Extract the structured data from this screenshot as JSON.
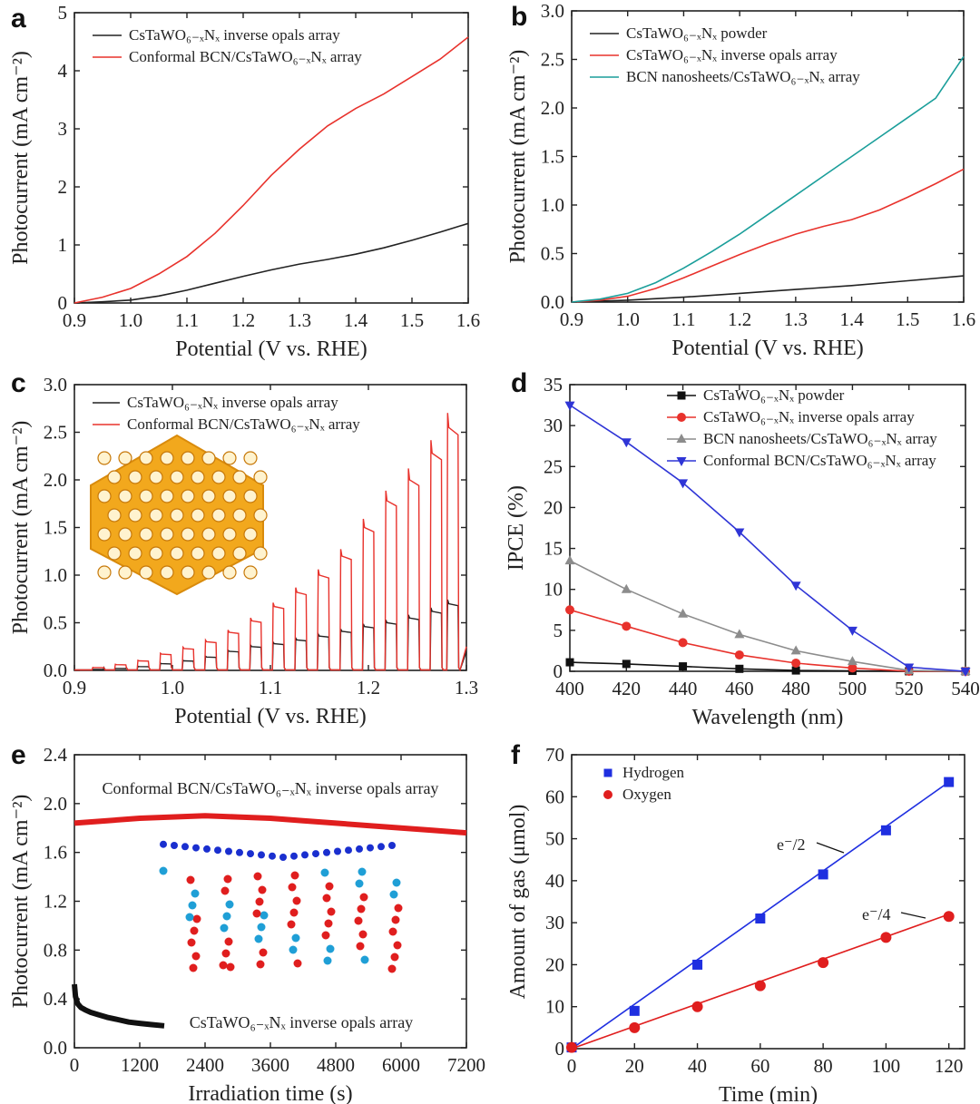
{
  "chart_data": [
    {
      "panel": "a",
      "type": "line",
      "xlabel": "Potential (V vs. RHE)",
      "ylabel": "Photocurrent (mA cm⁻²)",
      "xlim": [
        0.9,
        1.6
      ],
      "ylim": [
        0,
        5
      ],
      "xticks": [
        "0.9",
        "1.0",
        "1.1",
        "1.2",
        "1.3",
        "1.4",
        "1.5",
        "1.6"
      ],
      "yticks": [
        "0",
        "1",
        "2",
        "3",
        "4",
        "5"
      ],
      "series": [
        {
          "name": "CsTaWO₆₋ₓNₓ inverse opals array",
          "color": "#222222",
          "x": [
            0.9,
            0.95,
            1.0,
            1.05,
            1.1,
            1.15,
            1.2,
            1.25,
            1.3,
            1.35,
            1.4,
            1.45,
            1.5,
            1.55,
            1.6
          ],
          "y": [
            0,
            0.02,
            0.05,
            0.12,
            0.22,
            0.34,
            0.46,
            0.57,
            0.67,
            0.75,
            0.84,
            0.95,
            1.08,
            1.22,
            1.37
          ]
        },
        {
          "name": "Conformal BCN/CsTaWO₆₋ₓNₓ array",
          "color": "#e8322c",
          "x": [
            0.9,
            0.95,
            1.0,
            1.05,
            1.1,
            1.15,
            1.2,
            1.25,
            1.3,
            1.35,
            1.4,
            1.45,
            1.5,
            1.55,
            1.6
          ],
          "y": [
            0,
            0.1,
            0.25,
            0.5,
            0.8,
            1.2,
            1.68,
            2.2,
            2.65,
            3.05,
            3.35,
            3.6,
            3.9,
            4.2,
            4.58
          ]
        }
      ]
    },
    {
      "panel": "b",
      "type": "line",
      "xlabel": "Potential (V vs. RHE)",
      "ylabel": "Photocurrent (mA cm⁻²)",
      "xlim": [
        0.9,
        1.6
      ],
      "ylim": [
        0,
        3.0
      ],
      "xticks": [
        "0.9",
        "1.0",
        "1.1",
        "1.2",
        "1.3",
        "1.4",
        "1.5",
        "1.6"
      ],
      "yticks": [
        "0.0",
        "0.5",
        "1.0",
        "1.5",
        "2.0",
        "2.5",
        "3.0"
      ],
      "series": [
        {
          "name": "CsTaWO₆₋ₓNₓ powder",
          "color": "#222222",
          "x": [
            0.9,
            1.0,
            1.1,
            1.2,
            1.3,
            1.4,
            1.5,
            1.6
          ],
          "y": [
            0,
            0.02,
            0.05,
            0.09,
            0.13,
            0.17,
            0.22,
            0.27
          ]
        },
        {
          "name": "CsTaWO₆₋ₓNₓ inverse opals array",
          "color": "#e8322c",
          "x": [
            0.9,
            0.95,
            1.0,
            1.05,
            1.1,
            1.15,
            1.2,
            1.25,
            1.3,
            1.35,
            1.4,
            1.45,
            1.5,
            1.55,
            1.6
          ],
          "y": [
            0,
            0.02,
            0.06,
            0.14,
            0.25,
            0.37,
            0.49,
            0.6,
            0.7,
            0.78,
            0.85,
            0.95,
            1.08,
            1.22,
            1.37
          ]
        },
        {
          "name": "BCN nanosheets/CsTaWO₆₋ₓNₓ array",
          "color": "#1a9e9a",
          "x": [
            0.9,
            0.95,
            1.0,
            1.05,
            1.1,
            1.15,
            1.2,
            1.25,
            1.3,
            1.35,
            1.4,
            1.45,
            1.5,
            1.55,
            1.6
          ],
          "y": [
            0,
            0.03,
            0.09,
            0.2,
            0.35,
            0.52,
            0.7,
            0.9,
            1.1,
            1.3,
            1.5,
            1.7,
            1.9,
            2.1,
            2.53
          ]
        }
      ]
    },
    {
      "panel": "c",
      "type": "line",
      "xlabel": "Potential (V vs. RHE)",
      "ylabel": "Photocurrent (mA cm⁻²)",
      "xlim": [
        0.9,
        1.3
      ],
      "ylim": [
        0,
        3.0
      ],
      "xticks": [
        "0.9",
        "1.0",
        "1.1",
        "1.2",
        "1.3"
      ],
      "yticks": [
        "0.0",
        "0.5",
        "1.0",
        "1.5",
        "2.0",
        "2.5",
        "3.0"
      ],
      "chopped_light": true,
      "pulse_starts": [
        0.918,
        0.941,
        0.964,
        0.987,
        1.01,
        1.033,
        1.056,
        1.079,
        1.102,
        1.125,
        1.148,
        1.171,
        1.194,
        1.217,
        1.24,
        1.263,
        1.28
      ],
      "series": [
        {
          "name": "CsTaWO₆₋ₓNₓ inverse opals array",
          "color": "#222222",
          "pulse_heights": [
            0.01,
            0.02,
            0.04,
            0.07,
            0.1,
            0.14,
            0.2,
            0.25,
            0.28,
            0.32,
            0.36,
            0.41,
            0.46,
            0.5,
            0.55,
            0.62,
            0.7
          ]
        },
        {
          "name": "Conformal BCN/CsTaWO₆₋ₓNₓ array",
          "color": "#e8322c",
          "pulse_heights": [
            0.03,
            0.06,
            0.1,
            0.17,
            0.23,
            0.3,
            0.4,
            0.52,
            0.67,
            0.82,
            1.0,
            1.2,
            1.5,
            1.78,
            2.0,
            2.28,
            2.55
          ]
        }
      ]
    },
    {
      "panel": "d",
      "type": "line",
      "xlabel": "Wavelength (nm)",
      "ylabel": "IPCE (%)",
      "xlim": [
        400,
        540
      ],
      "ylim": [
        0,
        35
      ],
      "xticks": [
        "400",
        "420",
        "440",
        "460",
        "480",
        "500",
        "520",
        "540"
      ],
      "yticks": [
        "0",
        "5",
        "10",
        "15",
        "20",
        "25",
        "30",
        "35"
      ],
      "x": [
        400,
        420,
        440,
        460,
        480,
        500,
        520,
        540
      ],
      "series": [
        {
          "name": "CsTaWO₆₋ₓNₓ powder",
          "color": "#111111",
          "marker": "square",
          "values": [
            1.1,
            0.9,
            0.6,
            0.3,
            0.1,
            0.05,
            0,
            0
          ]
        },
        {
          "name": "CsTaWO₆₋ₓNₓ inverse opals array",
          "color": "#e8322c",
          "marker": "circle",
          "values": [
            7.5,
            5.5,
            3.5,
            2.0,
            1.0,
            0.4,
            0,
            0
          ]
        },
        {
          "name": "BCN nanosheets/CsTaWO₆₋ₓNₓ array",
          "color": "#8c8c8c",
          "marker": "triangle-up",
          "values": [
            13.5,
            10.0,
            7.0,
            4.5,
            2.5,
            1.2,
            0.1,
            0
          ]
        },
        {
          "name": "Conformal BCN/CsTaWO₆₋ₓNₓ array",
          "color": "#2f35d6",
          "marker": "triangle-down",
          "values": [
            32.5,
            28.0,
            23.0,
            17.0,
            10.5,
            5.0,
            0.5,
            0
          ]
        }
      ]
    },
    {
      "panel": "e",
      "type": "line",
      "xlabel": "Irradiation time (s)",
      "ylabel": "Photocurrent (mA cm⁻²)",
      "xlim": [
        0,
        7200
      ],
      "ylim": [
        0,
        2.4
      ],
      "xticks": [
        "0",
        "1200",
        "2400",
        "3600",
        "4800",
        "6000",
        "7200"
      ],
      "yticks": [
        "0.0",
        "0.4",
        "0.8",
        "1.2",
        "1.6",
        "2.0",
        "2.4"
      ],
      "annotations": [
        "Conformal BCN/CsTaWO₆₋ₓNₓ inverse opals array",
        "CsTaWO₆₋ₓNₓ inverse opals array"
      ],
      "series": [
        {
          "name": "Conformal BCN/CsTaWO₆₋ₓNₓ inverse opals array",
          "color": "#e01e1e",
          "x": [
            0,
            600,
            1200,
            1800,
            2400,
            3000,
            3600,
            4200,
            4800,
            5400,
            6000,
            6600,
            7200
          ],
          "y": [
            1.84,
            1.86,
            1.88,
            1.89,
            1.9,
            1.89,
            1.88,
            1.86,
            1.84,
            1.82,
            1.8,
            1.78,
            1.76
          ]
        },
        {
          "name": "CsTaWO₆₋ₓNₓ inverse opals array",
          "color": "#111111",
          "x": [
            0,
            20,
            60,
            120,
            200,
            300,
            450,
            600,
            800,
            1000,
            1200,
            1400,
            1650
          ],
          "y": [
            0.52,
            0.42,
            0.36,
            0.33,
            0.31,
            0.29,
            0.27,
            0.25,
            0.23,
            0.21,
            0.2,
            0.19,
            0.18
          ]
        }
      ]
    },
    {
      "panel": "f",
      "type": "scatter",
      "xlabel": "Time (min)",
      "ylabel": "Amount of gas (μmol)",
      "xlim": [
        0,
        125
      ],
      "ylim": [
        0,
        70
      ],
      "xticks": [
        "0",
        "20",
        "40",
        "60",
        "80",
        "100",
        "120"
      ],
      "yticks": [
        "0",
        "10",
        "20",
        "30",
        "40",
        "50",
        "60",
        "70"
      ],
      "x": [
        0,
        20,
        40,
        60,
        80,
        100,
        120
      ],
      "annotations": [
        "e⁻/2",
        "e⁻/4"
      ],
      "series": [
        {
          "name": "Hydrogen",
          "color": "#1f2fe0",
          "marker": "square",
          "values": [
            0.3,
            9,
            20,
            31,
            41.5,
            52,
            63.5
          ],
          "fit_end": [
            120,
            63.5
          ]
        },
        {
          "name": "Oxygen",
          "color": "#e01e1e",
          "marker": "circle",
          "values": [
            0.3,
            5,
            10,
            15,
            20.5,
            26.5,
            31.5
          ],
          "fit_end": [
            120,
            32
          ]
        }
      ]
    }
  ]
}
